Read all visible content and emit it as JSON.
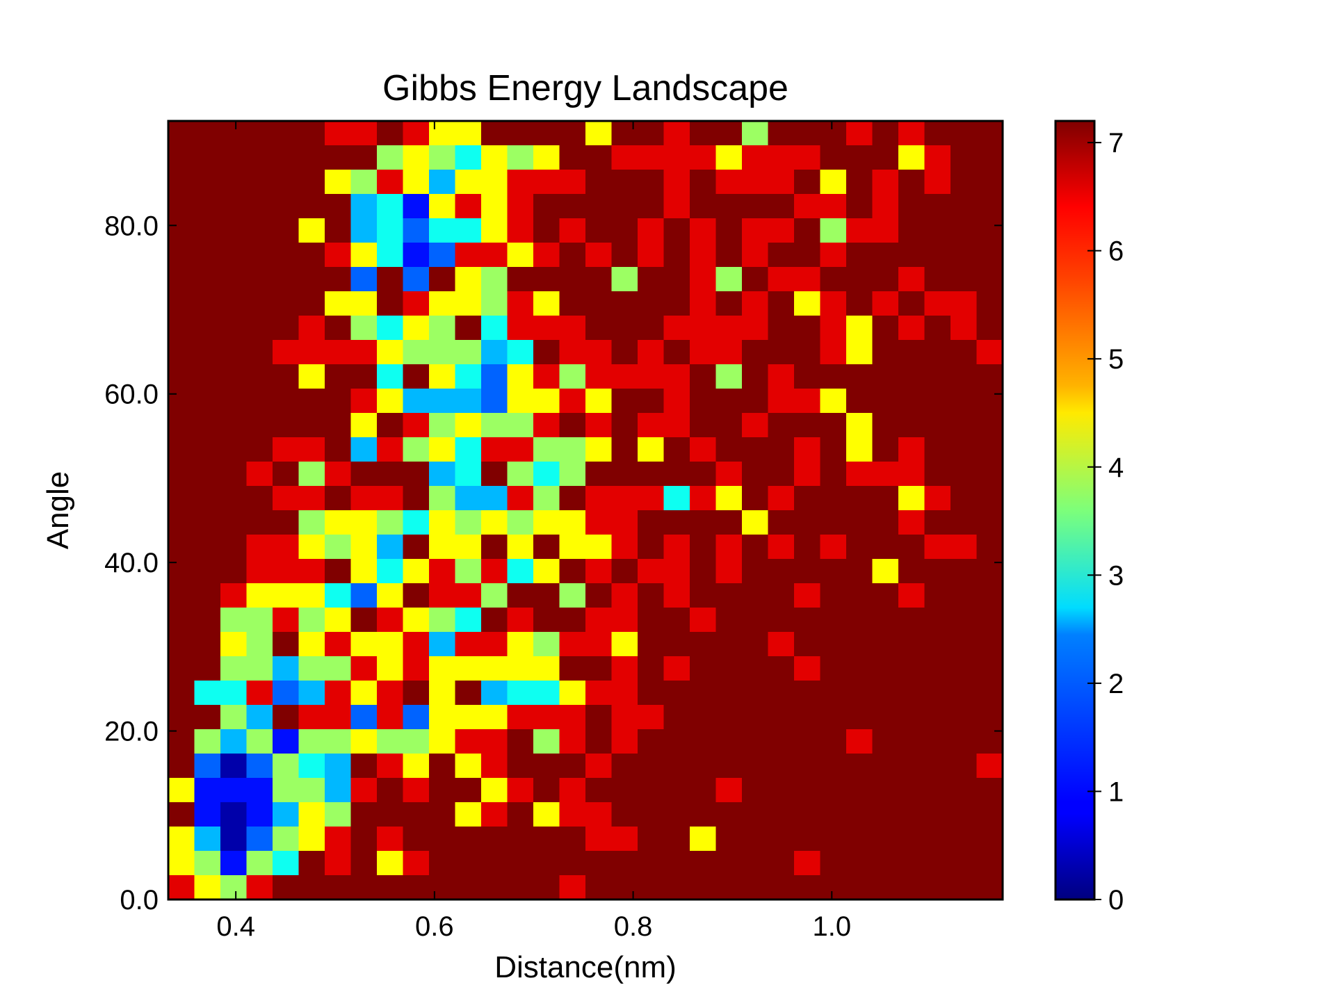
{
  "chart_data": {
    "type": "heatmap",
    "title": "Gibbs Energy Landscape",
    "xlabel": "Distance(nm)",
    "ylabel": "Angle",
    "xlim": [
      0.332,
      1.172
    ],
    "ylim": [
      0,
      92.4
    ],
    "x_ticks": [
      {
        "value": 0.4,
        "label": "0.4"
      },
      {
        "value": 0.6,
        "label": "0.6"
      },
      {
        "value": 0.8,
        "label": "0.8"
      },
      {
        "value": 1.0,
        "label": "1.0"
      }
    ],
    "y_ticks": [
      {
        "value": 0,
        "label": "0.0"
      },
      {
        "value": 20,
        "label": "20.0"
      },
      {
        "value": 40,
        "label": "40.0"
      },
      {
        "value": 60,
        "label": "60.0"
      },
      {
        "value": 80,
        "label": "80.0"
      }
    ],
    "colorbar": {
      "colormap": "jet",
      "min": 0,
      "max": 7.2,
      "ticks": [
        {
          "value": 0,
          "label": "0"
        },
        {
          "value": 1,
          "label": "1"
        },
        {
          "value": 2,
          "label": "2"
        },
        {
          "value": 3,
          "label": "3"
        },
        {
          "value": 4,
          "label": "4"
        },
        {
          "value": 5,
          "label": "5"
        },
        {
          "value": 6,
          "label": "6"
        },
        {
          "value": 7,
          "label": "7"
        }
      ]
    },
    "legend_key": {
      "D": 7.2,
      "R": 6.5,
      "Y": 4.5,
      "G": 3.8,
      "C": 2.8,
      "A": 2.2,
      "B": 1.6,
      "U": 1.0,
      "N": 0.3
    },
    "rows_top_to_bottom": [
      "DDDDDDRRDRYYDDDDYDDRDDGDDDRDRDDD",
      "DDDDDDDDGYGCYGYDDRRRRYRRRDDDYRDD",
      "DDDDDDYGRYAYYRRRDDDRDRRRDYDRDRDD",
      "DDDDDDDACUYRYRDDDDDRDDDDRRDRDDDD",
      "DDDDDYDACBCCYRDRDDRDRDRRDGRRDDDD",
      "DDDDDDRYCUBRRYRDRDRDRDRDDRDDDDDD",
      "DDDDDDDBDBDYGDDDDGDDRGDRRDDDRDDD",
      "DDDDDDYYDRYYGRYDDDDDRDRDYRDRDRRD",
      "DDDDDRDGCYGDCRRRDDDRRRRDDRYDRDRD",
      "DDDDRRRRYGGGACDRRDRDRRDDDRYDDDDR",
      "DDDDDYDDCDYCBYRGRRRRDGDRDDDDDDDD",
      "DDDDDDDRYAAABYYRYDDRDDDRRYDDDDDD",
      "DDDDDDDYDRGYGGRDRDRRDDRDDDYDDDDD",
      "DDDDRRDARGYCRRGGYDYDRDDDRDYDRDDD",
      "DDDRDGRDDDACDGCGDDDDDRDDRDRRRDDD",
      "DDDDRRDRRDGAARGDRRRCRYDRDDDDYRDD",
      "DDDDDGYYGCYGYGYYRRDDDDYDDDDDRDDD",
      "DDDRRYGYADYYDYDYYRDRDRDRDRDDDRRD",
      "DDDRRRDYCYRGRCYDRDRRDRDDDDDYDDDD",
      "DDRYYYCBYDRRGDDGDRDRDDDDRDDDRDDD",
      "DDGGRGYDRYGCDRDDRRDDRDDDDDDDDDDD",
      "DDYGDYRYYRARRYGRRYDDDDDRDDDDDDDD",
      "DDGGAGGRYRYYYYYDDRDRDDDDRDDDDDDD",
      "DCCRBARYRDYDACCYRRDDDDDDDDDDDDDD",
      "DDGADRRBRBYYYRRRDRRDDDDDDDDDDDDD",
      "DGAGUGGYGGYRRDGRDRDDDDDDDDRDDDDD",
      "DBNBGCADRYDYRDDDRDDDDDDDDDDDDDDR",
      "YUUUGGARDRDDYRDRDDDDDRDDDDDDDDDD",
      "DUNUAYGDDDDYRDYRRDDDDDDDDDDDDDDD",
      "YANBGYRDRDDDDDDDRRDDYDDDDDDDDDDD",
      "YGUGCDRDYRDDDDDDDDDDDDDDRDDDDDDD",
      "RYGRDDDDDDDDDDDRDDDDDDDDDDDDDDDD"
    ]
  }
}
